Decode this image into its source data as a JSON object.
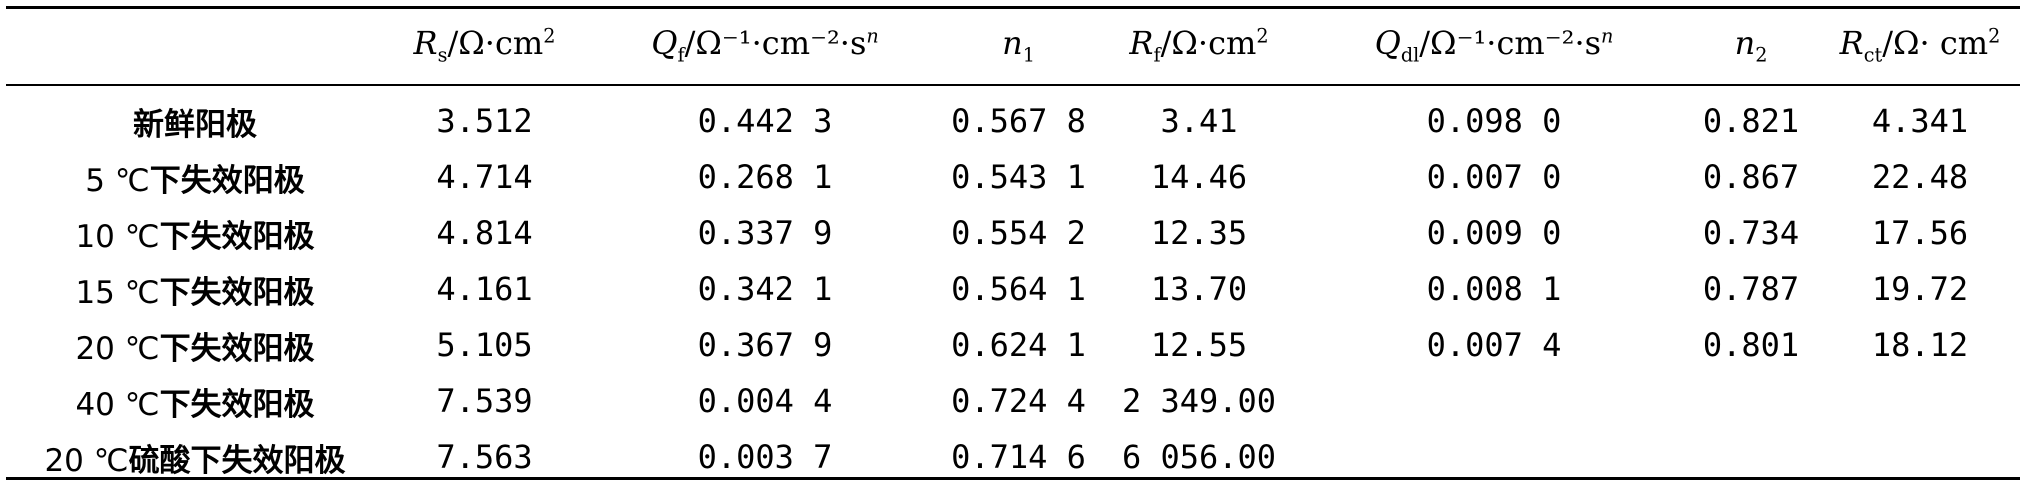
{
  "table": {
    "columns": [
      {
        "name": "R",
        "sub": "s",
        "unit": "/Ω·cm",
        "sup": "2"
      },
      {
        "name": "Q",
        "sub": "f",
        "unit": "/Ω⁻¹·cm⁻²·s",
        "sup": "n"
      },
      {
        "name": "n",
        "sub": "1",
        "unit": "",
        "sup": ""
      },
      {
        "name": "R",
        "sub": "f",
        "unit": "/Ω·cm",
        "sup": "2"
      },
      {
        "name": "Q",
        "sub": "dl",
        "unit": "/Ω⁻¹·cm⁻²·s",
        "sup": "n"
      },
      {
        "name": "n",
        "sub": "2",
        "unit": "",
        "sup": ""
      },
      {
        "name": "R",
        "sub": "ct",
        "unit": "/Ω· cm",
        "sup": "2"
      }
    ],
    "rows": [
      {
        "label_prefix": "",
        "label_text": "新鲜阳极",
        "values": [
          "3.512",
          "0.442 3",
          "0.567 8",
          "3.41",
          "0.098 0",
          "0.821",
          "4.341"
        ]
      },
      {
        "label_prefix": "5 ℃",
        "label_text": "下失效阳极",
        "values": [
          "4.714",
          "0.268 1",
          "0.543 1",
          "14.46",
          "0.007 0",
          "0.867",
          "22.48"
        ]
      },
      {
        "label_prefix": "10 ℃",
        "label_text": "下失效阳极",
        "values": [
          "4.814",
          "0.337 9",
          "0.554 2",
          "12.35",
          "0.009 0",
          "0.734",
          "17.56"
        ]
      },
      {
        "label_prefix": "15 ℃",
        "label_text": "下失效阳极",
        "values": [
          "4.161",
          "0.342 1",
          "0.564 1",
          "13.70",
          "0.008 1",
          "0.787",
          "19.72"
        ]
      },
      {
        "label_prefix": "20 ℃",
        "label_text": "下失效阳极",
        "values": [
          "5.105",
          "0.367 9",
          "0.624 1",
          "12.55",
          "0.007 4",
          "0.801",
          "18.12"
        ]
      },
      {
        "label_prefix": "40 ℃",
        "label_text": "下失效阳极",
        "values": [
          "7.539",
          "0.004 4",
          "0.724 4",
          "2 349.00",
          "",
          "",
          ""
        ]
      },
      {
        "label_prefix": "20 ℃",
        "label_text": "硫酸下失效阳极",
        "values": [
          "7.563",
          "0.003 7",
          "0.714 6",
          "6 056.00",
          "",
          "",
          ""
        ]
      }
    ]
  }
}
